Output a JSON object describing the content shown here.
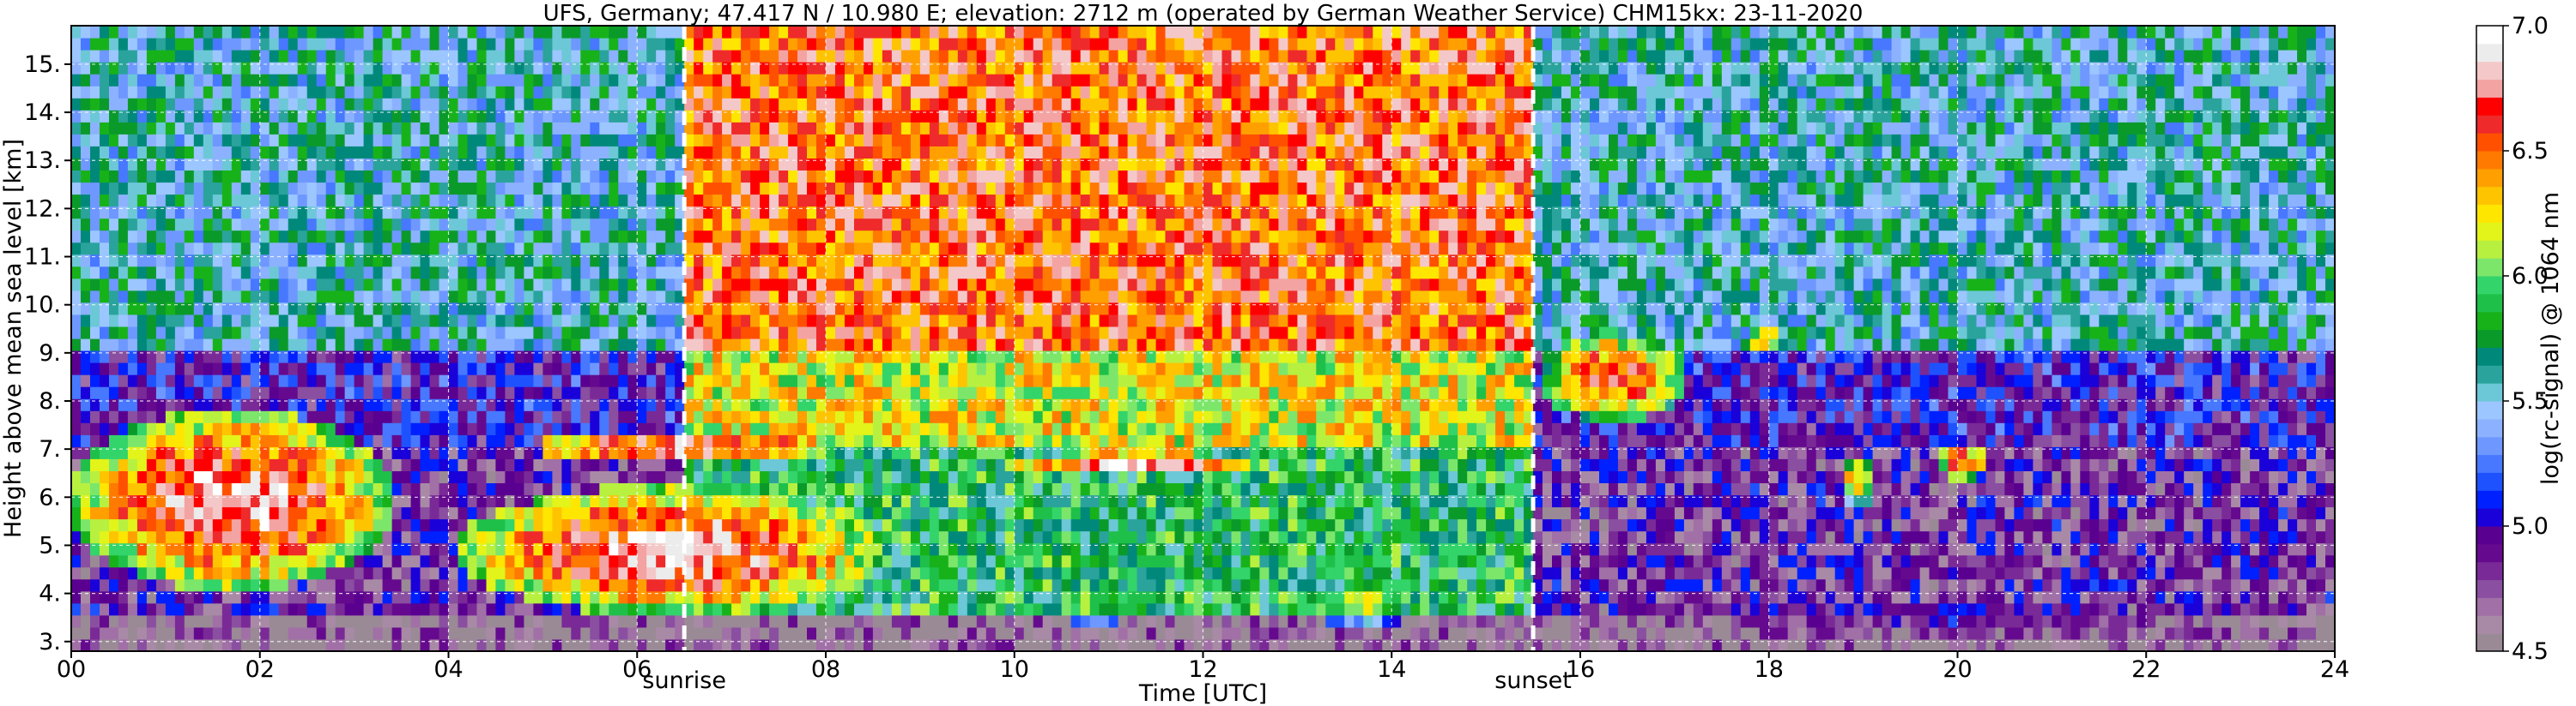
{
  "chart_data": {
    "type": "heatmap",
    "title": "UFS, Germany; 47.417 N / 10.980 E; elevation: 2712 m  (operated by German Weather Service)    CHM15kx: 23-11-2020",
    "xlabel": "Time [UTC]",
    "ylabel": "Height above mean sea level [km]",
    "xlim": [
      0,
      24
    ],
    "ylim": [
      2.8,
      15.8
    ],
    "x_ticks": [
      "00",
      "02",
      "04",
      "06",
      "08",
      "10",
      "12",
      "14",
      "16",
      "18",
      "20",
      "22",
      "24"
    ],
    "y_ticks": [
      "3.",
      "4.",
      "5.",
      "6.",
      "7.",
      "8.",
      "9.",
      "10.",
      "11.",
      "12.",
      "13.",
      "14.",
      "15."
    ],
    "grid": true,
    "colorbar": {
      "label": "log(rc-signal) @ 1064 nm",
      "range": [
        4.5,
        7.0
      ],
      "ticks": [
        "4.5",
        "5.0",
        "5.5",
        "6.0",
        "6.5",
        "7.0"
      ],
      "colors": [
        "#9a8a96",
        "#a98aa6",
        "#a070a6",
        "#8a4fa0",
        "#7a2a96",
        "#650a8e",
        "#5a0091",
        "#1a00d9",
        "#0020ff",
        "#1f52ff",
        "#4778ff",
        "#6e98ff",
        "#8cb2ff",
        "#9cc6ff",
        "#6cc8d6",
        "#2aa39c",
        "#00897b",
        "#0a9a2a",
        "#17b21a",
        "#1fc04a",
        "#33d46a",
        "#7ce66b",
        "#b8f040",
        "#e2f41a",
        "#ffe600",
        "#ffc400",
        "#ffa000",
        "#ff7a00",
        "#ff5000",
        "#ef2a2a",
        "#ff0000",
        "#f4a3a3",
        "#f4c8c8",
        "#ececec",
        "#ffffff"
      ]
    },
    "annotations": [
      {
        "text": "sunrise",
        "x": 6.5
      },
      {
        "text": "sunset",
        "x": 15.5
      }
    ],
    "features": [
      {
        "kind": "cloud_layer",
        "x": [
          0.0,
          3.4
        ],
        "y": [
          4.1,
          7.8
        ],
        "peak": 6.8
      },
      {
        "kind": "cloud_layer",
        "x": [
          4.1,
          8.6
        ],
        "y": [
          3.6,
          6.2
        ],
        "peak": 6.8
      },
      {
        "kind": "thin_layer",
        "x": [
          4.6,
          8.4
        ],
        "y": [
          6.9,
          7.2
        ],
        "peak": 7.0
      },
      {
        "kind": "thin_layer",
        "x": [
          10.0,
          12.6
        ],
        "y": [
          6.6,
          6.9
        ],
        "peak": 7.0
      },
      {
        "kind": "low_layer",
        "x": [
          10.4,
          11.3
        ],
        "y": [
          3.4,
          4.3
        ],
        "peak": 6.1
      },
      {
        "kind": "low_layer",
        "x": [
          13.0,
          14.4
        ],
        "y": [
          3.4,
          4.2
        ],
        "peak": 6.1
      },
      {
        "kind": "cloud",
        "x": [
          15.6,
          17.1
        ],
        "y": [
          7.6,
          9.4
        ],
        "peak": 6.6
      },
      {
        "kind": "cloud",
        "x": [
          17.8,
          18.1
        ],
        "y": [
          9.0,
          9.6
        ],
        "peak": 6.4
      },
      {
        "kind": "cloud",
        "x": [
          18.8,
          19.1
        ],
        "y": [
          5.9,
          6.8
        ],
        "peak": 6.4
      },
      {
        "kind": "cloud",
        "x": [
          19.8,
          20.3
        ],
        "y": [
          6.4,
          7.1
        ],
        "peak": 6.6
      },
      {
        "kind": "aerosol_band",
        "x": [
          16.4,
          24.0
        ],
        "y": [
          3.0,
          4.0
        ],
        "peak": 5.0
      },
      {
        "kind": "noise_bright",
        "x": [
          6.5,
          15.5
        ],
        "y": [
          7.0,
          15.8
        ],
        "peak": 6.9
      }
    ]
  }
}
